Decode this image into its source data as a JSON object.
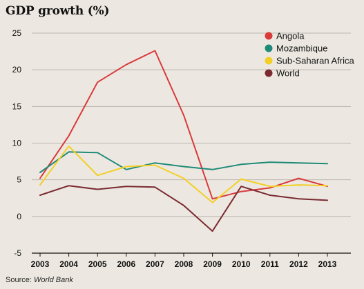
{
  "title": "GDP growth (%)",
  "source": {
    "prefix": "Source: ",
    "name": "World Bank"
  },
  "chart_data": {
    "type": "line",
    "title": "GDP growth (%)",
    "xlabel": "",
    "ylabel": "",
    "x": [
      2003,
      2004,
      2005,
      2006,
      2007,
      2008,
      2009,
      2010,
      2011,
      2012,
      2013
    ],
    "ylim": [
      -5,
      25
    ],
    "yticks": [
      -5,
      0,
      5,
      10,
      15,
      20,
      25
    ],
    "grid": "horizontal",
    "legend": "top-right",
    "series": [
      {
        "name": "Angola",
        "color": "#d93a3a",
        "values": [
          5.2,
          11.0,
          18.3,
          20.7,
          22.6,
          13.8,
          2.4,
          3.4,
          3.9,
          5.2,
          4.1
        ]
      },
      {
        "name": "Mozambique",
        "color": "#1f8a78",
        "values": [
          6.0,
          8.8,
          8.7,
          6.4,
          7.3,
          6.8,
          6.4,
          7.1,
          7.4,
          7.3,
          7.2
        ]
      },
      {
        "name": "Sub-Saharan Africa",
        "color": "#f2cf24",
        "values": [
          4.3,
          9.6,
          5.6,
          6.8,
          7.0,
          5.2,
          1.9,
          5.1,
          4.1,
          4.3,
          4.2
        ]
      },
      {
        "name": "World",
        "color": "#7a2a30",
        "values": [
          2.9,
          4.2,
          3.7,
          4.1,
          4.0,
          1.5,
          -2.0,
          4.1,
          2.9,
          2.4,
          2.2
        ]
      }
    ]
  }
}
